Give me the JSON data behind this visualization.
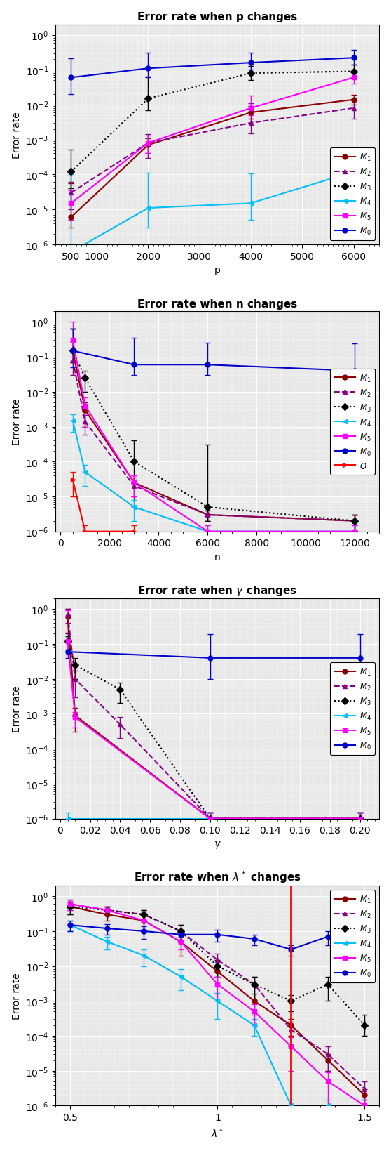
{
  "plot1": {
    "title": "Error rate when p changes",
    "xlabel": "p",
    "ylabel": "Error rate",
    "xlim": [
      200,
      6500
    ],
    "ylim": [
      1e-06,
      2.0
    ],
    "xticks": [
      500,
      1000,
      2000,
      3000,
      4000,
      5000,
      6000
    ],
    "xticklabels": [
      "500",
      "1000",
      "2000",
      "3000",
      "4000",
      "5000",
      "6000"
    ],
    "series": {
      "M1": {
        "x": [
          500,
          2000,
          4000,
          6000
        ],
        "y": [
          6e-06,
          0.0007,
          0.006,
          0.014
        ],
        "yerr_lo": [
          3e-06,
          0.0003,
          0.002,
          0.004
        ],
        "yerr_hi": [
          5e-05,
          0.0004,
          0.003,
          0.005
        ],
        "color": "#8B0000",
        "marker": "o",
        "linestyle": "-"
      },
      "M2": {
        "x": [
          500,
          2000,
          4000,
          6000
        ],
        "y": [
          3e-05,
          0.0008,
          0.003,
          0.008
        ],
        "yerr_lo": [
          2e-05,
          0.0005,
          0.0015,
          0.004
        ],
        "yerr_hi": [
          3e-05,
          0.0006,
          0.008,
          0.005
        ],
        "color": "#8B008B",
        "marker": "^",
        "linestyle": "--"
      },
      "M3": {
        "x": [
          500,
          2000,
          4000,
          6000
        ],
        "y": [
          0.00012,
          0.015,
          0.08,
          0.09
        ],
        "yerr_lo": [
          8e-05,
          0.008,
          0.03,
          0.03
        ],
        "yerr_hi": [
          0.0004,
          0.05,
          0.05,
          0.05
        ],
        "color": "#000000",
        "marker": "D",
        "linestyle": ":"
      },
      "M4": {
        "x": [
          500,
          2000,
          4000,
          6000
        ],
        "y": [
          6e-07,
          1.1e-05,
          1.5e-05,
          0.00012
        ],
        "yerr_lo": [
          1e-07,
          8e-06,
          1e-05,
          8e-05
        ],
        "yerr_hi": [
          0.0001,
          0.0001,
          9e-05,
          5e-05
        ],
        "color": "#00BFFF",
        "marker": "<",
        "linestyle": "-"
      },
      "M5": {
        "x": [
          500,
          2000,
          4000,
          6000
        ],
        "y": [
          1.5e-05,
          0.0008,
          0.008,
          0.06
        ],
        "yerr_lo": [
          1e-05,
          0.0004,
          0.003,
          0.02
        ],
        "yerr_hi": [
          2e-05,
          0.0005,
          0.01,
          0.03
        ],
        "color": "#FF00FF",
        "marker": "s",
        "linestyle": "-"
      },
      "M0": {
        "x": [
          500,
          2000,
          4000,
          6000
        ],
        "y": [
          0.06,
          0.11,
          0.16,
          0.22
        ],
        "yerr_lo": [
          0.04,
          0.05,
          0.06,
          0.08
        ],
        "yerr_hi": [
          0.15,
          0.2,
          0.15,
          0.15
        ],
        "color": "#0000CD",
        "marker": "o",
        "linestyle": "-"
      }
    }
  },
  "plot2": {
    "title": "Error rate when n changes",
    "xlabel": "n",
    "ylabel": "Error rate",
    "xlim": [
      -200,
      13000
    ],
    "ylim": [
      1e-06,
      2.0
    ],
    "xticks": [
      0,
      2000,
      4000,
      6000,
      8000,
      10000,
      12000
    ],
    "xticklabels": [
      "0",
      "2000",
      "4000",
      "6000",
      "8000",
      "10000",
      "12000"
    ],
    "series": {
      "M1": {
        "x": [
          500,
          1000,
          3000,
          6000,
          12000
        ],
        "y": [
          0.15,
          0.003,
          2.5e-05,
          3e-06,
          2e-06
        ],
        "yerr_lo": [
          0.08,
          0.002,
          1.5e-05,
          1e-06,
          1e-06
        ],
        "yerr_hi": [
          0.5,
          0.002,
          1.5e-05,
          1e-06,
          1e-06
        ],
        "color": "#8B0000",
        "marker": "o",
        "linestyle": "-"
      },
      "M2": {
        "x": [
          500,
          1000,
          3000,
          6000,
          12000
        ],
        "y": [
          0.08,
          0.0014,
          2e-05,
          3e-06,
          2e-06
        ],
        "yerr_lo": [
          0.05,
          0.0008,
          1.5e-05,
          1e-06,
          1e-06
        ],
        "yerr_hi": [
          0.2,
          0.0008,
          1.5e-05,
          1e-06,
          1e-06
        ],
        "color": "#8B008B",
        "marker": "^",
        "linestyle": "--"
      },
      "M3": {
        "x": [
          500,
          1000,
          3000,
          6000,
          12000
        ],
        "y": [
          0.15,
          0.025,
          0.0001,
          5e-06,
          2e-06
        ],
        "yerr_lo": [
          0.08,
          0.015,
          7e-05,
          3e-06,
          1e-06
        ],
        "yerr_hi": [
          0.5,
          0.015,
          0.0003,
          0.0003,
          1e-06
        ],
        "color": "#000000",
        "marker": "D",
        "linestyle": ":"
      },
      "M4": {
        "x": [
          500,
          1000,
          3000,
          6000,
          12000
        ],
        "y": [
          0.0015,
          5e-05,
          5e-06,
          1e-06,
          1e-06
        ],
        "yerr_lo": [
          0.0008,
          3e-05,
          3e-06,
          5e-07,
          5e-07
        ],
        "yerr_hi": [
          0.0008,
          3e-05,
          3e-06,
          5e-07,
          5e-07
        ],
        "color": "#00BFFF",
        "marker": "<",
        "linestyle": "-"
      },
      "M5": {
        "x": [
          500,
          1000,
          3000,
          6000,
          12000
        ],
        "y": [
          0.3,
          0.004,
          2.5e-05,
          1e-06,
          1e-06
        ],
        "yerr_lo": [
          0.2,
          0.003,
          1.5e-05,
          5e-07,
          5e-07
        ],
        "yerr_hi": [
          0.7,
          0.003,
          1.5e-05,
          5e-07,
          5e-07
        ],
        "color": "#FF00FF",
        "marker": "s",
        "linestyle": "-"
      },
      "M0": {
        "x": [
          500,
          3000,
          6000,
          12000
        ],
        "y": [
          0.15,
          0.06,
          0.06,
          0.04
        ],
        "yerr_lo": [
          0.1,
          0.03,
          0.03,
          0.02
        ],
        "yerr_hi": [
          0.5,
          0.3,
          0.2,
          0.2
        ],
        "color": "#0000CD",
        "marker": "o",
        "linestyle": "-"
      },
      "O": {
        "x": [
          500,
          1000,
          3000
        ],
        "y": [
          3e-05,
          1e-06,
          1e-06
        ],
        "yerr_lo": [
          2e-05,
          5e-07,
          5e-07
        ],
        "yerr_hi": [
          2e-05,
          5e-07,
          5e-07
        ],
        "color": "#FF0000",
        "marker": ">",
        "linestyle": "-"
      }
    }
  },
  "plot3": {
    "title": "Error rate when $\\gamma$ changes",
    "xlabel": "$\\gamma$",
    "ylabel": "Error rate",
    "xlim": [
      -0.003,
      0.213
    ],
    "ylim": [
      1e-06,
      2.0
    ],
    "xticks": [
      0.0,
      0.02,
      0.04,
      0.06,
      0.08,
      0.1,
      0.12,
      0.14,
      0.16,
      0.18,
      0.2
    ],
    "xticklabels": [
      "0",
      "0.02",
      "0.04",
      "0.06",
      "0.08",
      "0.10",
      "0.12",
      "0.14",
      "0.16",
      "0.18",
      "0.20"
    ],
    "series": {
      "M1": {
        "x": [
          0.005,
          0.01,
          0.1,
          0.2
        ],
        "y": [
          0.6,
          0.0009,
          1e-06,
          1e-06
        ],
        "yerr_lo": [
          0.4,
          0.0006,
          5e-07,
          5e-07
        ],
        "yerr_hi": [
          0.4,
          0.0006,
          5e-07,
          5e-07
        ],
        "color": "#8B0000",
        "marker": "o",
        "linestyle": "-"
      },
      "M2": {
        "x": [
          0.005,
          0.01,
          0.04,
          0.1,
          0.2
        ],
        "y": [
          0.7,
          0.01,
          0.0005,
          1e-06,
          1e-06
        ],
        "yerr_lo": [
          0.3,
          0.007,
          0.0003,
          5e-07,
          5e-07
        ],
        "yerr_hi": [
          0.3,
          0.007,
          0.0003,
          5e-07,
          5e-07
        ],
        "color": "#8B008B",
        "marker": "^",
        "linestyle": "--"
      },
      "M3": {
        "x": [
          0.005,
          0.01,
          0.04,
          0.1,
          0.2
        ],
        "y": [
          0.12,
          0.025,
          0.005,
          1e-06,
          1e-06
        ],
        "yerr_lo": [
          0.05,
          0.015,
          0.003,
          5e-07,
          5e-07
        ],
        "yerr_hi": [
          0.05,
          0.015,
          0.003,
          5e-07,
          5e-07
        ],
        "color": "#000000",
        "marker": "D",
        "linestyle": ":"
      },
      "M4": {
        "x": [
          0.005,
          0.1,
          0.2
        ],
        "y": [
          1e-06,
          1e-06,
          1e-06
        ],
        "yerr_lo": [
          5e-07,
          5e-07,
          5e-07
        ],
        "yerr_hi": [
          5e-07,
          5e-07,
          5e-07
        ],
        "color": "#00BFFF",
        "marker": "<",
        "linestyle": "-"
      },
      "M5": {
        "x": [
          0.005,
          0.01,
          0.1,
          0.2
        ],
        "y": [
          0.12,
          0.0008,
          1e-06,
          1e-06
        ],
        "yerr_lo": [
          0.07,
          0.0004,
          5e-07,
          5e-07
        ],
        "yerr_hi": [
          0.8,
          0.0003,
          5e-07,
          5e-07
        ],
        "color": "#FF00FF",
        "marker": "s",
        "linestyle": "-"
      },
      "M0": {
        "x": [
          0.005,
          0.1,
          0.2
        ],
        "y": [
          0.06,
          0.04,
          0.04
        ],
        "yerr_lo": [
          0.02,
          0.03,
          0.03
        ],
        "yerr_hi": [
          0.15,
          0.15,
          0.15
        ],
        "color": "#0000CD",
        "marker": "o",
        "linestyle": "-"
      }
    }
  },
  "plot4": {
    "title": "Error rate when $\\lambda^*$ changes",
    "xlabel": "$\\lambda^*$",
    "ylabel": "Error rate",
    "xlim": [
      0.45,
      1.55
    ],
    "ylim": [
      1e-06,
      2.0
    ],
    "xticks": [
      0.5,
      0.75,
      1.0,
      1.25,
      1.5
    ],
    "xticklabels": [
      "0.5",
      "",
      "1",
      "",
      "1.5"
    ],
    "vline": 1.25,
    "series": {
      "M1": {
        "x": [
          0.5,
          0.625,
          0.75,
          0.875,
          1.0,
          1.125,
          1.25,
          1.375,
          1.5
        ],
        "y": [
          0.5,
          0.3,
          0.2,
          0.05,
          0.007,
          0.001,
          0.0002,
          2e-05,
          2e-06
        ],
        "yerr_lo": [
          0.2,
          0.1,
          0.1,
          0.03,
          0.004,
          0.0006,
          0.0001,
          1e-05,
          1e-06
        ],
        "yerr_hi": [
          0.2,
          0.1,
          0.1,
          0.03,
          0.004,
          0.0006,
          0.0001,
          1e-05,
          1e-06
        ],
        "color": "#8B0000",
        "marker": "o",
        "linestyle": "-"
      },
      "M2": {
        "x": [
          0.5,
          0.625,
          0.75,
          0.875,
          1.0,
          1.125,
          1.25,
          1.375,
          1.5
        ],
        "y": [
          0.6,
          0.4,
          0.3,
          0.1,
          0.015,
          0.003,
          0.00015,
          3e-05,
          3e-06
        ],
        "yerr_lo": [
          0.2,
          0.1,
          0.1,
          0.05,
          0.008,
          0.002,
          0.0001,
          2e-05,
          2e-06
        ],
        "yerr_hi": [
          0.2,
          0.1,
          0.1,
          0.05,
          0.008,
          0.002,
          0.0001,
          2e-05,
          2e-06
        ],
        "color": "#8B008B",
        "marker": "^",
        "linestyle": "--"
      },
      "M3": {
        "x": [
          0.5,
          0.625,
          0.75,
          0.875,
          1.0,
          1.125,
          1.25,
          1.375,
          1.5
        ],
        "y": [
          0.5,
          0.4,
          0.3,
          0.1,
          0.01,
          0.003,
          0.001,
          0.003,
          0.0002
        ],
        "yerr_lo": [
          0.2,
          0.1,
          0.1,
          0.05,
          0.005,
          0.002,
          0.0005,
          0.002,
          0.0001
        ],
        "yerr_hi": [
          0.2,
          0.1,
          0.1,
          0.05,
          0.005,
          0.002,
          0.0005,
          0.002,
          0.0002
        ],
        "color": "#000000",
        "marker": "D",
        "linestyle": ":"
      },
      "M4": {
        "x": [
          0.5,
          0.625,
          0.75,
          0.875,
          1.0,
          1.125,
          1.25,
          1.375,
          1.5
        ],
        "y": [
          0.15,
          0.05,
          0.02,
          0.005,
          0.001,
          0.0002,
          1e-06,
          1e-06,
          1e-06
        ],
        "yerr_lo": [
          0.05,
          0.02,
          0.01,
          0.003,
          0.0007,
          0.0001,
          5e-07,
          5e-07,
          5e-07
        ],
        "yerr_hi": [
          0.05,
          0.02,
          0.01,
          0.003,
          0.0007,
          0.0001,
          5e-07,
          5e-07,
          5e-07
        ],
        "color": "#00BFFF",
        "marker": "<",
        "linestyle": "-"
      },
      "M5": {
        "x": [
          0.5,
          0.625,
          0.75,
          0.875,
          1.0,
          1.125,
          1.25,
          1.375,
          1.5
        ],
        "y": [
          0.6,
          0.4,
          0.2,
          0.05,
          0.003,
          0.0005,
          5e-05,
          5e-06,
          1e-06
        ],
        "yerr_lo": [
          0.2,
          0.1,
          0.1,
          0.02,
          0.002,
          0.0003,
          4e-05,
          4e-06,
          5e-07
        ],
        "yerr_hi": [
          0.2,
          0.1,
          0.1,
          0.02,
          0.002,
          0.0003,
          4e-05,
          4e-06,
          5e-07
        ],
        "color": "#FF00FF",
        "marker": "s",
        "linestyle": "-"
      },
      "M0": {
        "x": [
          0.5,
          0.625,
          0.75,
          0.875,
          1.0,
          1.125,
          1.25,
          1.375,
          1.5
        ],
        "y": [
          0.15,
          0.12,
          0.1,
          0.08,
          0.08,
          0.06,
          0.03,
          0.07,
          0.1
        ],
        "yerr_lo": [
          0.05,
          0.04,
          0.04,
          0.03,
          0.03,
          0.02,
          0.01,
          0.03,
          0.05
        ],
        "yerr_hi": [
          0.05,
          0.04,
          0.04,
          0.03,
          0.03,
          0.02,
          0.01,
          0.03,
          0.05
        ],
        "color": "#0000CD",
        "marker": "o",
        "linestyle": "-"
      }
    }
  },
  "bg_color": "#E8E8E8",
  "grid_color": "#FFFFFF",
  "grid_linestyle": "-",
  "grid_linewidth": 0.7
}
